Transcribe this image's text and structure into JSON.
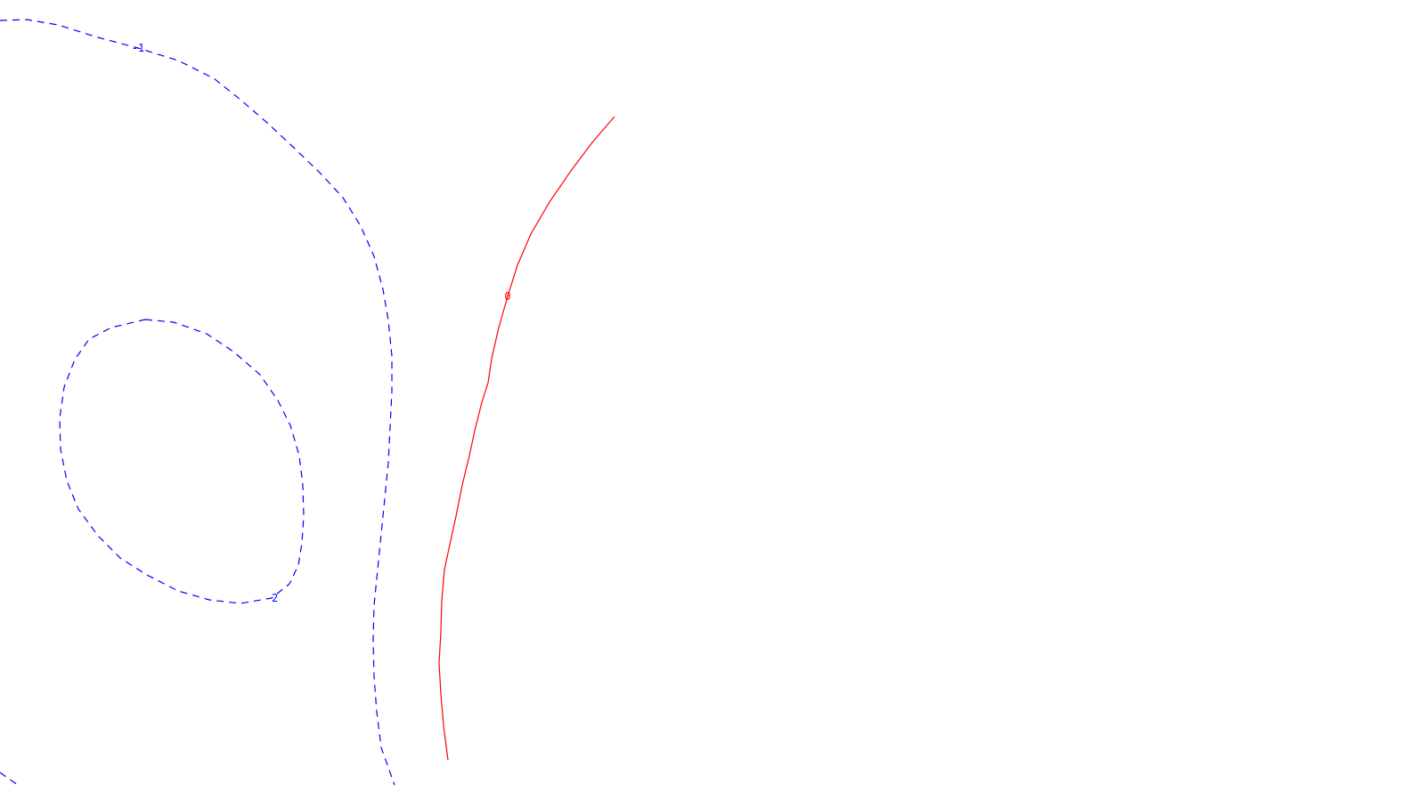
{
  "chart_data": {
    "type": "contour",
    "title": "",
    "xlabel": "",
    "ylabel": "",
    "grid": false,
    "legend": "none",
    "contours": [
      {
        "level_label": "-1",
        "color": "#0000ff",
        "style": "dashed",
        "label_at": 4
      },
      {
        "level_label": "-2",
        "color": "#0000ff",
        "style": "dashed",
        "label_at": 13
      },
      {
        "level_label": "0",
        "color": "#ff0000",
        "style": "solid",
        "label_at": 6
      }
    ]
  }
}
